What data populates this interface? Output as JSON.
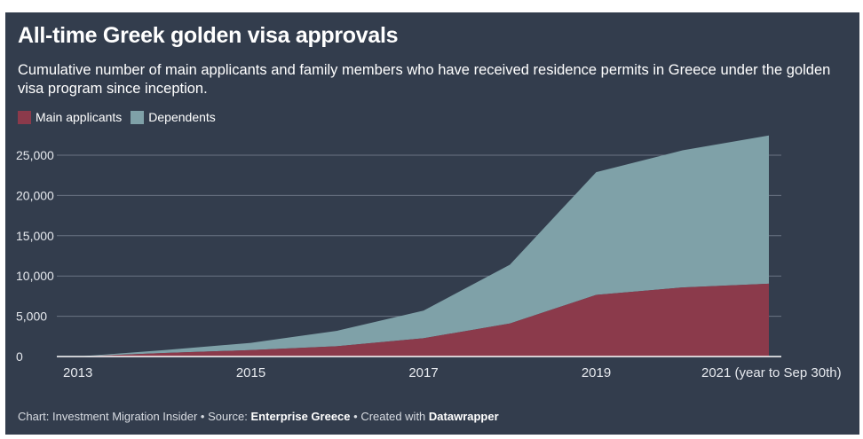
{
  "title": "All-time Greek golden visa approvals",
  "subtitle": "Cumulative number of main applicants and family members who have received residence permits in Greece under the golden visa program since inception.",
  "footer": {
    "chart_prefix": "Chart: Investment Migration Insider",
    "sep1": " • ",
    "source_prefix": "Source: ",
    "source": "Enterprise Greece",
    "sep2": " • ",
    "created_prefix": "Created with ",
    "created_with": "Datawrapper"
  },
  "colors": {
    "background": "#333d4d",
    "main": "#8b3a4b",
    "dependents": "#7fa1a8",
    "grid": "#6b7483"
  },
  "chart_data": {
    "type": "area",
    "stacked": true,
    "x": [
      2013,
      2014,
      2015,
      2016,
      2017,
      2018,
      2019,
      2020,
      2021
    ],
    "series": [
      {
        "name": "Main applicants",
        "values": [
          0,
          440,
          800,
          1280,
          2270,
          4100,
          7660,
          8580,
          9050
        ]
      },
      {
        "name": "Dependents",
        "values": [
          0,
          360,
          900,
          1920,
          3430,
          7300,
          15240,
          17020,
          18400
        ]
      }
    ],
    "ylim": [
      0,
      27500
    ],
    "yticks": [
      0,
      5000,
      10000,
      15000,
      20000,
      25000
    ],
    "ytick_labels": [
      "0",
      "5,000",
      "10,000",
      "15,000",
      "20,000",
      "25,000"
    ],
    "xticks": [
      2013,
      2015,
      2017,
      2019,
      2021
    ],
    "xtick_labels": [
      "2013",
      "2015",
      "2017",
      "2019",
      "2021 (year to Sep 30th)"
    ],
    "legend_position": "top-left",
    "grid": true
  }
}
